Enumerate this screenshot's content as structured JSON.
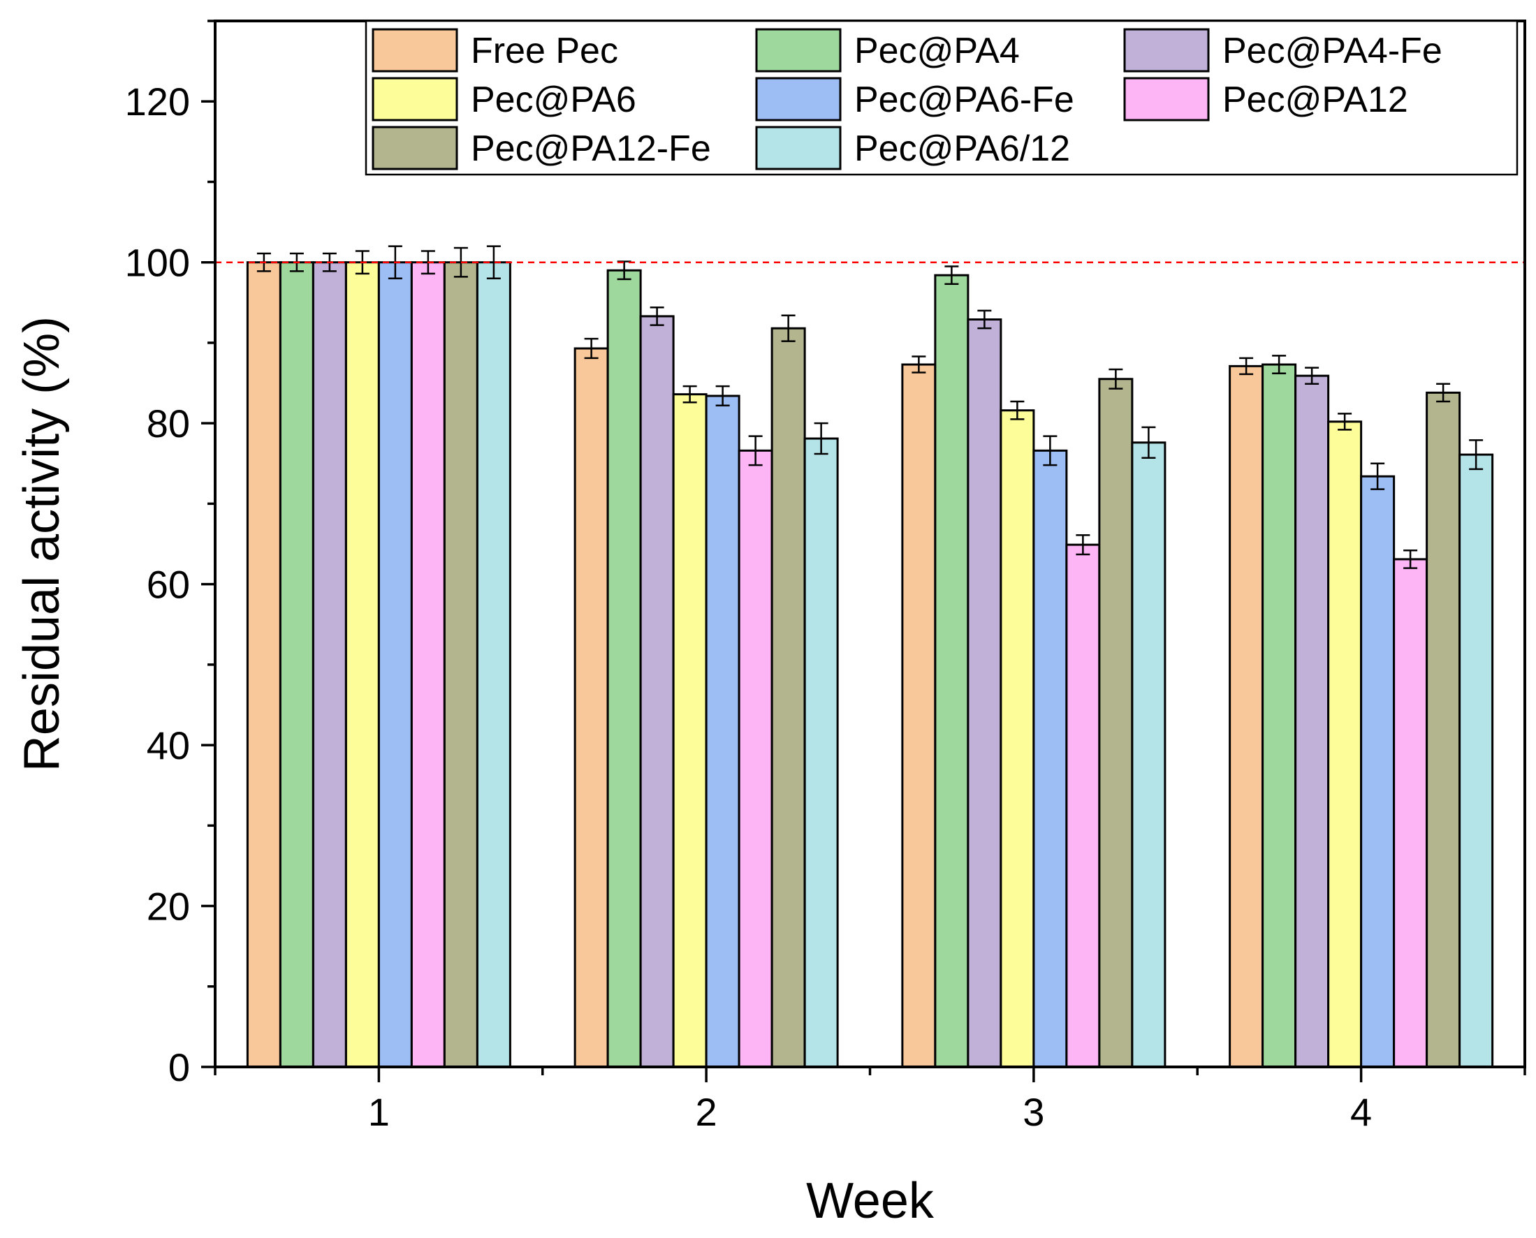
{
  "chart_data": {
    "type": "bar",
    "title": "",
    "xlabel": "Week",
    "ylabel": "Residual activity (%)",
    "ylim": [
      0,
      130
    ],
    "yticks": [
      0,
      20,
      40,
      60,
      80,
      100,
      120
    ],
    "ytick_labels": [
      "0",
      "20",
      "40",
      "60",
      "80",
      "100",
      "120"
    ],
    "categories": [
      "1",
      "2",
      "3",
      "4"
    ],
    "reference_line": {
      "value": 100,
      "color": "#ff0000",
      "style": "dashed"
    },
    "legend_position": "top-right",
    "series": [
      {
        "name": "Free Pec",
        "color": "#f9c89a",
        "values": [
          100,
          89.3,
          87.3,
          87.1
        ],
        "errors": [
          1.1,
          1.2,
          1.0,
          1.0
        ]
      },
      {
        "name": "Pec@PA4",
        "color": "#9fd89c",
        "values": [
          100,
          99.0,
          98.4,
          87.3
        ],
        "errors": [
          1.1,
          1.1,
          1.1,
          1.1
        ]
      },
      {
        "name": "Pec@PA4-Fe",
        "color": "#c1b0d8",
        "values": [
          100,
          93.3,
          92.9,
          85.9
        ],
        "errors": [
          1.1,
          1.1,
          1.1,
          1.0
        ]
      },
      {
        "name": "Pec@PA6",
        "color": "#fdfd9a",
        "values": [
          100,
          83.6,
          81.6,
          80.2
        ],
        "errors": [
          1.4,
          1.0,
          1.1,
          1.0
        ]
      },
      {
        "name": "Pec@PA6-Fe",
        "color": "#9dbdf5",
        "values": [
          100,
          83.4,
          76.6,
          73.4
        ],
        "errors": [
          2.0,
          1.2,
          1.8,
          1.6
        ]
      },
      {
        "name": "Pec@PA12",
        "color": "#fdb5f6",
        "values": [
          100,
          76.6,
          64.9,
          63.1
        ],
        "errors": [
          1.4,
          1.8,
          1.2,
          1.1
        ]
      },
      {
        "name": "Pec@PA12-Fe",
        "color": "#b3b58f",
        "values": [
          100,
          91.8,
          85.5,
          83.8
        ],
        "errors": [
          1.8,
          1.6,
          1.2,
          1.1
        ]
      },
      {
        "name": "Pec@PA6/12",
        "color": "#b4e3e8",
        "values": [
          100,
          78.1,
          77.6,
          76.1
        ],
        "errors": [
          2.0,
          1.9,
          1.9,
          1.8
        ]
      }
    ]
  }
}
